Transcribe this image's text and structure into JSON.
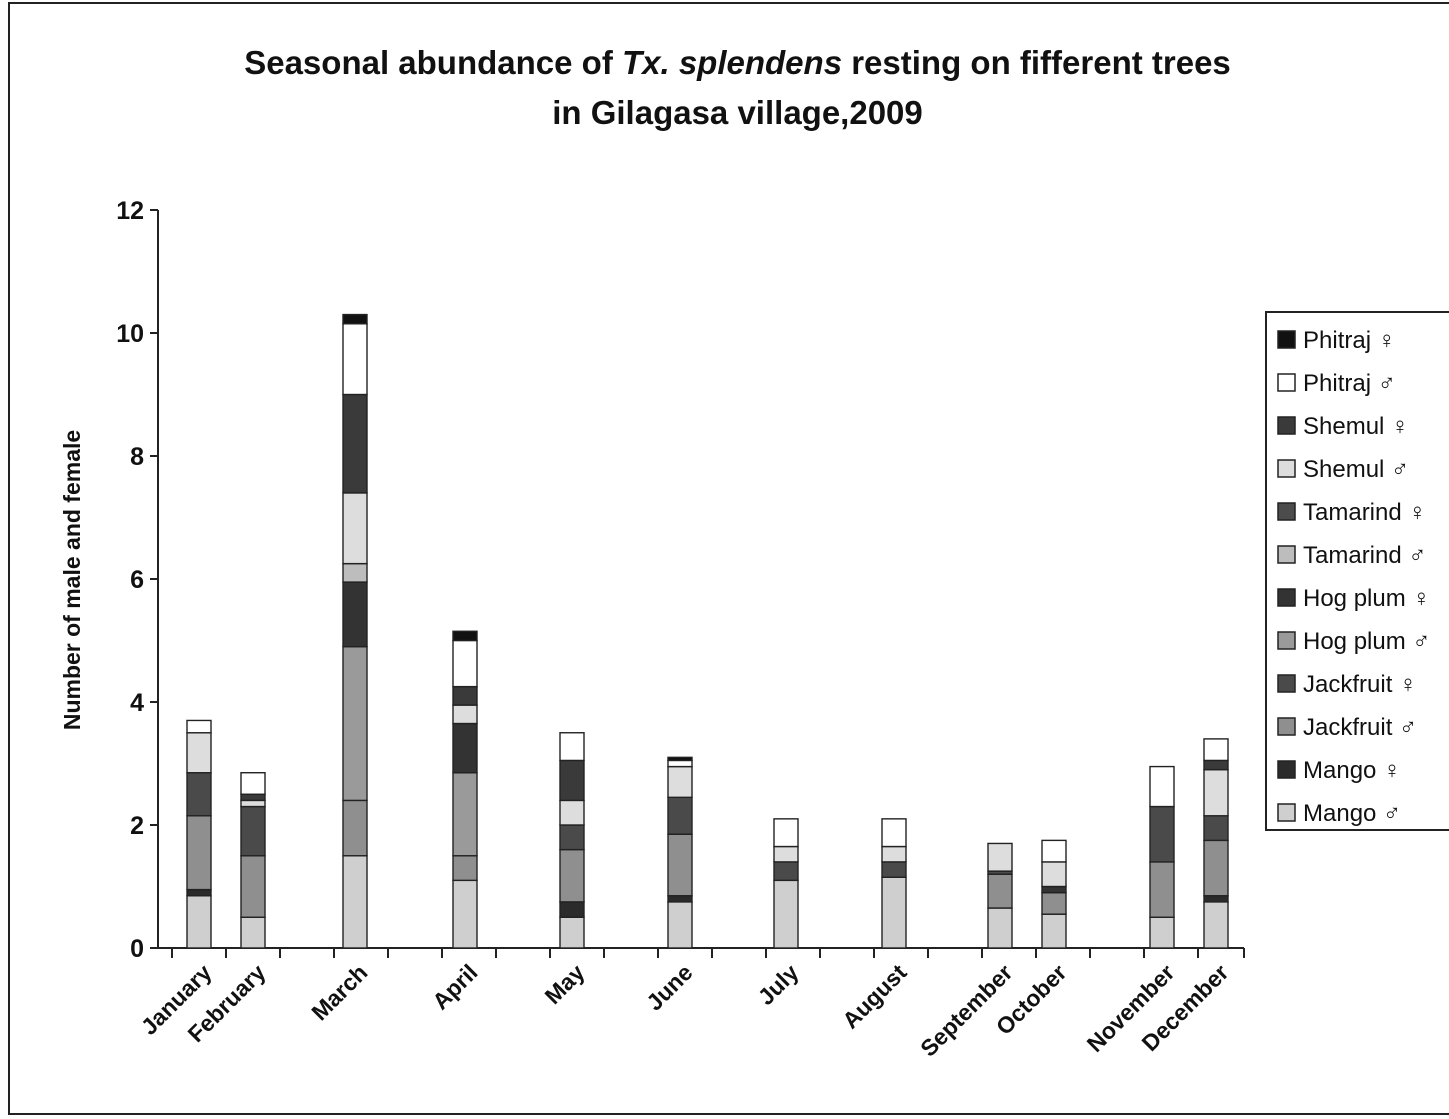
{
  "chart_data": {
    "type": "bar",
    "stacked": true,
    "title": {
      "line1_before": "Seasonal abundance of ",
      "line1_italic": "Tx. splendens",
      "line1_after": " resting on fifferent trees",
      "line2": "in Gilagasa village,2009"
    },
    "xlabel": "",
    "ylabel": "Number of male and female",
    "ylim": [
      0,
      12
    ],
    "yticks": [
      "0",
      "2",
      "4",
      "6",
      "8",
      "10",
      "12"
    ],
    "categories": [
      "January",
      "February",
      "March",
      "April",
      "May",
      "June",
      "July",
      "August",
      "September",
      "October",
      "November",
      "December"
    ],
    "grid": false,
    "legend_position": "right",
    "series": [
      {
        "name": "Mango ♂",
        "color": "#cfcfcf",
        "values": [
          0.85,
          0.5,
          1.5,
          1.1,
          0.5,
          0.75,
          1.1,
          1.15,
          0.65,
          0.55,
          0.5,
          0.75
        ]
      },
      {
        "name": "Mango ♀",
        "color": "#2b2b2b",
        "values": [
          0.1,
          0.0,
          0.0,
          0.0,
          0.25,
          0.1,
          0.0,
          0.0,
          0.0,
          0.0,
          0.0,
          0.1
        ]
      },
      {
        "name": "Jackfruit ♂",
        "color": "#8f8f8f",
        "values": [
          1.2,
          1.0,
          0.9,
          0.4,
          0.85,
          1.0,
          0.0,
          0.0,
          0.55,
          0.35,
          0.9,
          0.9
        ]
      },
      {
        "name": "Jackfruit ♀",
        "color": "#4a4a4a",
        "values": [
          0.7,
          0.8,
          0.0,
          0.0,
          0.4,
          0.6,
          0.3,
          0.25,
          0.05,
          0.0,
          0.9,
          0.4
        ]
      },
      {
        "name": "Hog plum ♂",
        "color": "#9a9a9a",
        "values": [
          0.0,
          0.0,
          2.5,
          1.35,
          0.0,
          0.0,
          0.0,
          0.0,
          0.0,
          0.0,
          0.0,
          0.0
        ]
      },
      {
        "name": "Hog plum ♀",
        "color": "#333333",
        "values": [
          0.0,
          0.0,
          1.05,
          0.8,
          0.0,
          0.0,
          0.0,
          0.0,
          0.0,
          0.1,
          0.0,
          0.0
        ]
      },
      {
        "name": "Tamarind ♂",
        "color": "#bdbdbd",
        "values": [
          0.0,
          0.0,
          0.3,
          0.0,
          0.0,
          0.0,
          0.0,
          0.0,
          0.0,
          0.0,
          0.0,
          0.0
        ]
      },
      {
        "name": "Tamarind ♀",
        "color": "#4c4c4c",
        "values": [
          0.0,
          0.0,
          0.0,
          0.0,
          0.0,
          0.0,
          0.0,
          0.0,
          0.0,
          0.0,
          0.0,
          0.0
        ]
      },
      {
        "name": "Shemul ♂",
        "color": "#dddddd",
        "values": [
          0.65,
          0.1,
          1.15,
          0.3,
          0.4,
          0.5,
          0.25,
          0.25,
          0.45,
          0.4,
          0.0,
          0.75
        ]
      },
      {
        "name": "Shemul ♀",
        "color": "#3a3a3a",
        "values": [
          0.0,
          0.1,
          1.6,
          0.3,
          0.65,
          0.0,
          0.0,
          0.0,
          0.0,
          0.0,
          0.0,
          0.15
        ]
      },
      {
        "name": "Phitraj ♂",
        "color": "#ffffff",
        "values": [
          0.2,
          0.35,
          1.15,
          0.75,
          0.45,
          0.1,
          0.45,
          0.45,
          0.0,
          0.35,
          0.65,
          0.35
        ]
      },
      {
        "name": "Phitraj ♀",
        "color": "#111111",
        "values": [
          0.0,
          0.0,
          0.15,
          0.15,
          0.0,
          0.05,
          0.0,
          0.0,
          0.0,
          0.0,
          0.0,
          0.0
        ]
      }
    ]
  }
}
